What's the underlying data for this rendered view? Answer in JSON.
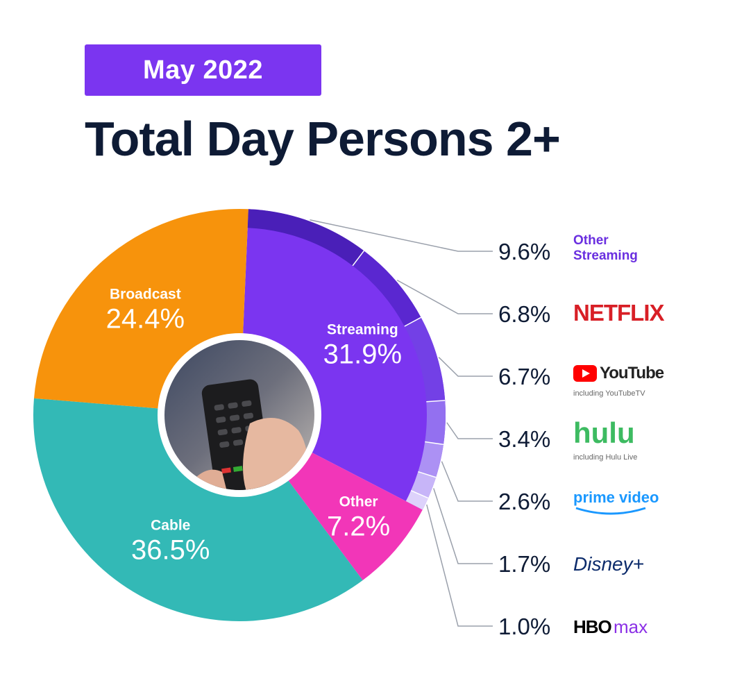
{
  "header": {
    "date_badge": "May 2022",
    "title": "Total Day Persons 2+"
  },
  "colors": {
    "badge": "#7b35f0",
    "title": "#0e1b35",
    "broadcast": "#f7930c",
    "streaming": "#7b35f0",
    "other": "#f236b8",
    "cable": "#33b9b6"
  },
  "chart_data": {
    "type": "pie",
    "title": "Total Day Persons 2+",
    "subtitle": "May 2022",
    "slices": [
      {
        "label": "Streaming",
        "value": 31.9,
        "display": "31.9%",
        "color": "#7b35f0"
      },
      {
        "label": "Other",
        "value": 7.2,
        "display": "7.2%",
        "color": "#f236b8"
      },
      {
        "label": "Cable",
        "value": 36.5,
        "display": "36.5%",
        "color": "#33b9b6"
      },
      {
        "label": "Broadcast",
        "value": 24.4,
        "display": "24.4%",
        "color": "#f7930c"
      }
    ],
    "streaming_breakdown": [
      {
        "service": "Other Streaming",
        "value": 9.6,
        "display": "9.6%",
        "color": "#4a1fb8"
      },
      {
        "service": "NETFLIX",
        "value": 6.8,
        "display": "6.8%",
        "color": "#5a27d0"
      },
      {
        "service": "YouTube",
        "note": "including YouTubeTV",
        "value": 6.7,
        "display": "6.7%",
        "color": "#7340e6"
      },
      {
        "service": "hulu",
        "note": "including Hulu Live",
        "value": 3.4,
        "display": "3.4%",
        "color": "#9370f0"
      },
      {
        "service": "prime video",
        "value": 2.6,
        "display": "2.6%",
        "color": "#ac91f4"
      },
      {
        "service": "Disney+",
        "value": 1.7,
        "display": "1.7%",
        "color": "#c7b5f8"
      },
      {
        "service": "HBOmax",
        "value": 1.0,
        "display": "1.0%",
        "color": "#ddd2fb"
      }
    ]
  }
}
